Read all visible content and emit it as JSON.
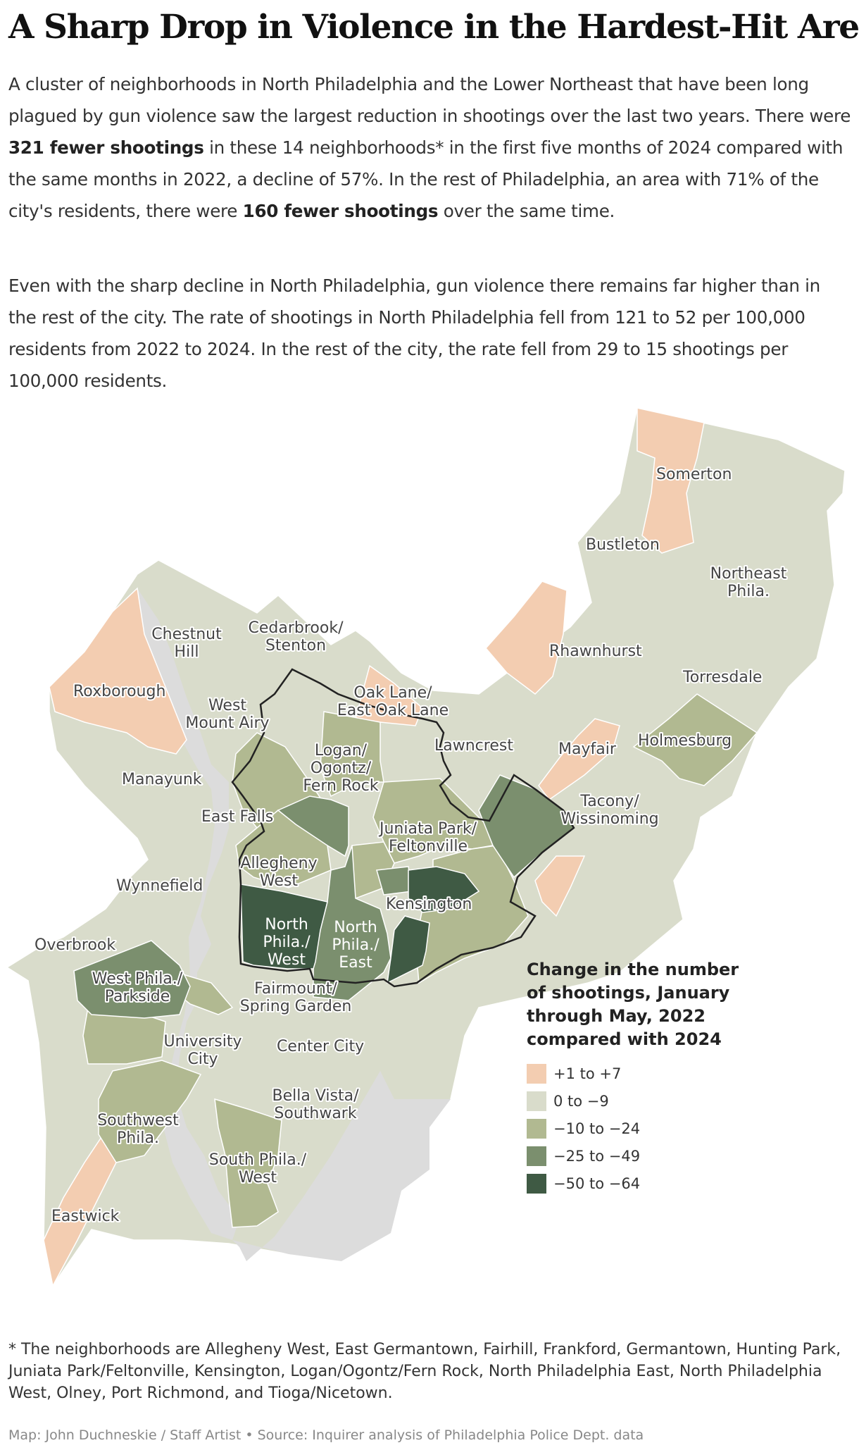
{
  "title": "A Sharp Drop in Violence in the Hardest-Hit Areas",
  "intro": {
    "p1_a": "A cluster of neighborhoods in North Philadelphia and the Lower Northeast that have been long plagued by gun violence saw the largest reduction in shootings over the last two years. There were ",
    "p1_bold1": "321 fewer shootings",
    "p1_b": " in these 14 neighborhoods* in the first five months of 2024 compared with the same months in 2022, a decline of 57%. In the rest of Philadelphia, an area with 71% of the city's residents, there were ",
    "p1_bold2": "160 fewer shootings",
    "p1_c": " over the same time.",
    "p2": "Even with the sharp decline in North Philadelphia, gun violence there remains far higher than in the rest of the city. The rate of shootings in North Philadelphia fell from 121 to 52 per 100,000 residents from 2022 to 2024. In the rest of the city, the rate fell from 29 to 15 shootings per 100,000 residents."
  },
  "colors": {
    "c1": "#f3cdb1",
    "c2": "#d9dccb",
    "c3": "#b1b991",
    "c4": "#7b8f6e",
    "c5": "#3f5a44",
    "water": "#dcdcdc",
    "outline": "#222222"
  },
  "legend": {
    "title": "Change in the number of shootings, January through May, 2022 compared with 2024",
    "items": [
      {
        "label": "+1 to +7",
        "color": "#f3cdb1"
      },
      {
        "label": "0 to −9",
        "color": "#d9dccb"
      },
      {
        "label": "−10 to −24",
        "color": "#b1b991"
      },
      {
        "label": "−25 to −49",
        "color": "#7b8f6e"
      },
      {
        "label": "−50 to −64",
        "color": "#3f5a44"
      }
    ]
  },
  "neighborhoods": {
    "somerton": "Somerton",
    "bustleton": "Bustleton",
    "northeast": [
      "Northeast",
      "Phila."
    ],
    "chestnut_hill": [
      "Chestnut",
      "Hill"
    ],
    "cedarbrook": [
      "Cedarbrook/",
      "Stenton"
    ],
    "rhawnhurst": "Rhawnhurst",
    "roxborough": "Roxborough",
    "west_mt_airy": [
      "West",
      "Mount Airy"
    ],
    "oak_lane": [
      "Oak Lane/",
      "East Oak Lane"
    ],
    "torresdale": "Torresdale",
    "holmesburg": "Holmesburg",
    "lawncrest": "Lawncrest",
    "mayfair": "Mayfair",
    "logan": [
      "Logan/",
      "Ogontz/",
      "Fern Rock"
    ],
    "manayunk": "Manayunk",
    "tacony": [
      "Tacony/",
      "Wissinoming"
    ],
    "east_falls": "East Falls",
    "juniata": [
      "Juniata Park/",
      "Feltonville"
    ],
    "allegheny": [
      "Allegheny",
      "West"
    ],
    "wynnefield": "Wynnefield",
    "kensington": "Kensington",
    "north_west": [
      "North",
      "Phila./",
      "West"
    ],
    "north_east": [
      "North",
      "Phila./",
      "East"
    ],
    "overbrook": "Overbrook",
    "west_phila": [
      "West Phila./",
      "Parkside"
    ],
    "fairmount": [
      "Fairmount/",
      "Spring Garden"
    ],
    "university": [
      "University",
      "City"
    ],
    "center_city": "Center City",
    "bella_vista": [
      "Bella Vista/",
      "Southwark"
    ],
    "southwest": [
      "Southwest",
      "Phila."
    ],
    "south_west": [
      "South Phila./",
      "West"
    ],
    "eastwick": "Eastwick"
  },
  "footnote": "* The neighborhoods are Allegheny West, East Germantown, Fairhill, Frankford, Germantown, Hunting Park, Juniata Park/Feltonville, Kensington, Logan/Ogontz/Fern Rock, North Philadelphia East, North Philadelphia West, Olney, Port Richmond, and Tioga/Nicetown.",
  "credit": "Map: John Duchneskie / Staff Artist • Source: Inquirer analysis of Philadelphia Police Dept. data"
}
